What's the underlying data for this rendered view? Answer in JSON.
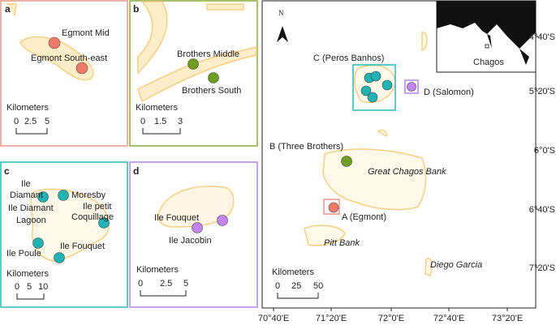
{
  "panels": [
    {
      "letter": "a",
      "sites": [
        {
          "lines": [
            "Egmont Mid"
          ]
        },
        {
          "lines": [
            "Egmont South-east"
          ]
        }
      ],
      "scale": {
        "title": "Kilometers",
        "ticks": [
          0,
          2.5,
          5
        ]
      }
    },
    {
      "letter": "b",
      "sites": [
        {
          "lines": [
            "Brothers Middle"
          ]
        },
        {
          "lines": [
            "Brothers South"
          ]
        }
      ],
      "scale": {
        "title": "Kilometers",
        "ticks": [
          0,
          1.5,
          3
        ]
      }
    },
    {
      "letter": "c",
      "sites": [
        {
          "lines": [
            "Ile",
            "Diamant"
          ]
        },
        {
          "lines": [
            "Moresby"
          ]
        },
        {
          "lines": [
            "Ile petit",
            "Coquillage"
          ]
        },
        {
          "lines": [
            "Ile Diamant",
            "Lagoon"
          ]
        },
        {
          "lines": [
            "Ile Poule"
          ]
        },
        {
          "lines": [
            "Ile Fouquet"
          ]
        }
      ],
      "scale": {
        "title": "Kilometers",
        "ticks": [
          0,
          5,
          10
        ]
      }
    },
    {
      "letter": "d",
      "sites": [
        {
          "lines": [
            "Ile Fouquet"
          ]
        },
        {
          "lines": [
            "Ile Jacobin"
          ]
        }
      ],
      "scale": {
        "title": "Kilometers",
        "ticks": [
          0,
          2.5,
          5
        ]
      }
    }
  ],
  "map": {
    "north": "N",
    "inset_label": "Chagos",
    "sites": [
      "C (Peros Banhos)",
      "D (Salomon)",
      "B (Three Brothers)",
      "A (Egmont)"
    ],
    "places": [
      "Great Chagos Bank",
      "Pitt Bank",
      "Diego Garcia"
    ],
    "scale": {
      "title": "Kilometers",
      "ticks": [
        0,
        25,
        50
      ]
    },
    "x_ticks": [
      "70°40'E",
      "71°20'E",
      "72°0'E",
      "72°40'E",
      "73°20'E"
    ],
    "y_ticks": [
      "4°40'S",
      "5°20'S",
      "6°0'S",
      "6°40'S",
      "7°20'S"
    ]
  }
}
